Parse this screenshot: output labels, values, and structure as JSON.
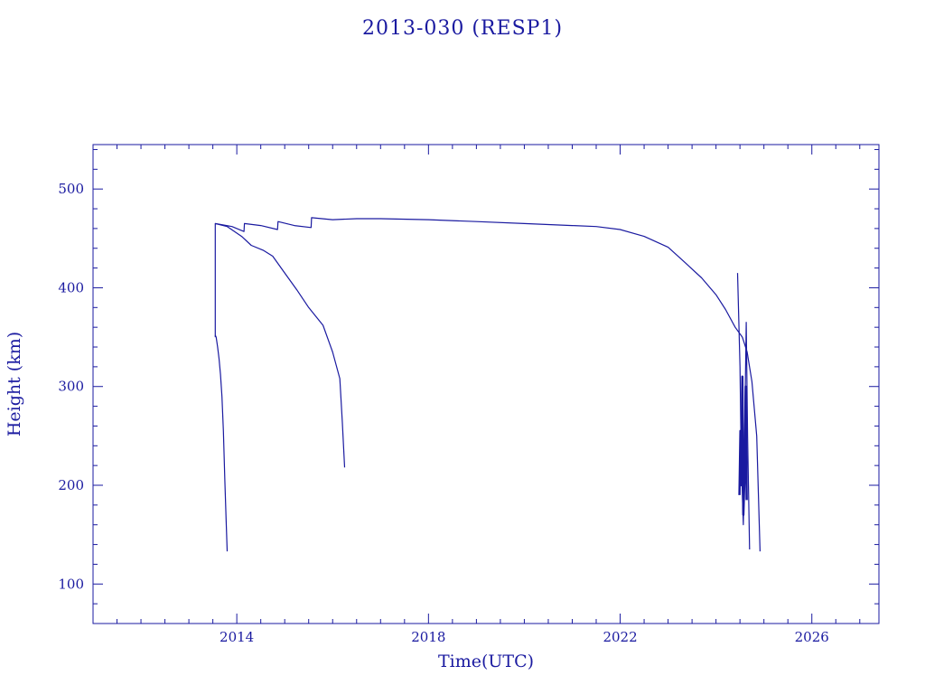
{
  "chart_data": {
    "type": "line",
    "title": "2013-030 (RESP1)",
    "xlabel": "Time(UTC)",
    "ylabel": "Height (km)",
    "xlim": [
      2011.0,
      2027.4
    ],
    "ylim": [
      60,
      545
    ],
    "xticks": [
      2014,
      2018,
      2022,
      2026
    ],
    "yticks": [
      100,
      200,
      300,
      400,
      500
    ],
    "grid": false,
    "color": "#1a1aa0",
    "series": [
      {
        "x": [
          2013.55,
          2013.57,
          2013.6,
          2013.63,
          2013.66,
          2013.69,
          2013.72,
          2013.75,
          2013.78,
          2013.8
        ],
        "y": [
          352,
          350,
          340,
          328,
          312,
          290,
          255,
          205,
          160,
          133
        ]
      },
      {
        "x": [
          2013.55,
          2013.8,
          2014.1,
          2014.3,
          2014.55,
          2014.75,
          2015.0,
          2015.25,
          2015.5,
          2015.8,
          2016.0,
          2016.15,
          2016.2,
          2016.25
        ],
        "y": [
          465,
          462,
          452,
          443,
          438,
          432,
          415,
          398,
          380,
          362,
          335,
          308,
          265,
          218
        ]
      },
      {
        "x": [
          2013.55,
          2013.55,
          2013.9,
          2014.15,
          2014.16,
          2014.5,
          2014.85,
          2014.86,
          2015.2,
          2015.55,
          2015.56,
          2016.0,
          2016.5,
          2017.0,
          2018.0,
          2019.0,
          2020.0,
          2021.0,
          2021.5,
          2022.0,
          2022.5,
          2023.0,
          2023.3,
          2023.7,
          2024.0,
          2024.2,
          2024.4,
          2024.55,
          2024.65,
          2024.75,
          2024.85,
          2024.92
        ],
        "y": [
          350,
          465,
          462,
          457,
          465,
          463,
          459,
          467,
          463,
          461,
          471,
          469,
          470,
          470,
          469,
          467,
          465,
          463,
          462,
          459,
          452,
          441,
          428,
          410,
          393,
          378,
          360,
          350,
          335,
          305,
          250,
          133
        ]
      },
      {
        "x": [
          2024.45,
          2024.5,
          2024.52,
          2024.55,
          2024.57,
          2024.6,
          2024.63,
          2024.66,
          2024.7
        ],
        "y": [
          415,
          320,
          250,
          190,
          160,
          260,
          365,
          250,
          135
        ]
      },
      {
        "x": [
          2024.49,
          2024.51,
          2024.53,
          2024.55,
          2024.57,
          2024.6,
          2024.62,
          2024.64
        ],
        "y": [
          190,
          255,
          200,
          310,
          170,
          220,
          300,
          185
        ]
      }
    ]
  }
}
